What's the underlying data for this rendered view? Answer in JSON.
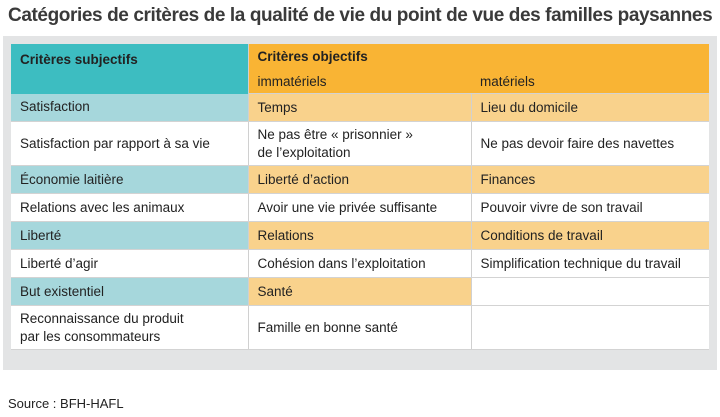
{
  "title": "Catégories de critères de la qualité de vie du point de vue des familles paysannes",
  "table": {
    "header_subjective": "Critères subjectifs",
    "header_objective": "Critères objectifs",
    "sub_immaterial": "immatériels",
    "sub_material": "matériels",
    "rows": [
      [
        "Satisfaction",
        "Temps",
        "Lieu du domicile"
      ],
      [
        "Satisfaction par rapport à sa vie",
        "Ne pas être « prisonnier »\nde l’exploitation",
        "Ne pas devoir faire des navettes"
      ],
      [
        "Économie laitière",
        "Liberté d’action",
        "Finances"
      ],
      [
        "Relations avec les animaux",
        "Avoir une vie privée suffisante",
        "Pouvoir vivre de son travail"
      ],
      [
        "Liberté",
        "Relations",
        "Conditions de travail"
      ],
      [
        "Liberté d’agir",
        "Cohésion dans l’exploitation",
        "Simplification technique du travail"
      ],
      [
        "But existentiel",
        "Santé",
        ""
      ],
      [
        "Reconnaissance du produit\npar les consommateurs",
        "Famille en bonne santé",
        ""
      ]
    ]
  },
  "source": "Source : BFH-HAFL",
  "colors": {
    "teal_header": "#3dbdc1",
    "teal_light": "#a6d7dc",
    "orange_header": "#f9b434",
    "orange_light": "#f9d28c",
    "panel_grey": "#e3e4e5"
  }
}
